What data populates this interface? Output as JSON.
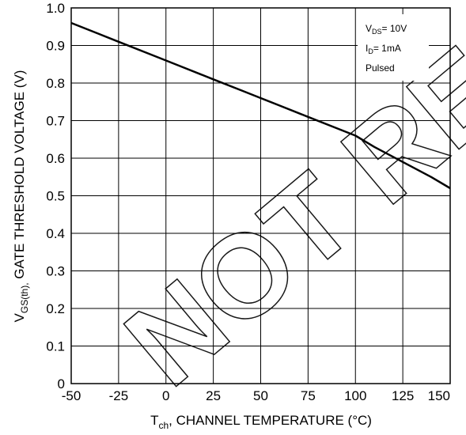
{
  "chart_data": {
    "type": "line",
    "title": "",
    "xlabel": {
      "main": "T",
      "sub": "ch",
      "rest": ", CHANNEL TEMPERATURE  (°C)"
    },
    "ylabel": {
      "main": "V",
      "sub": "GS(th),",
      "rest": " GATE THRESHOLD VOLTAGE (V)"
    },
    "xlim": [
      -50,
      150
    ],
    "ylim": [
      0,
      1.0
    ],
    "x_ticks": [
      -50,
      -25,
      0,
      25,
      50,
      75,
      100,
      125,
      150
    ],
    "x_tick_labels": [
      "-50",
      "-25",
      "0",
      "25",
      "50",
      "75",
      "100",
      "125",
      "150"
    ],
    "y_ticks": [
      0,
      0.1,
      0.2,
      0.3,
      0.4,
      0.5,
      0.6,
      0.7,
      0.8,
      0.9,
      1.0
    ],
    "y_tick_labels": [
      "0",
      "0.1",
      "0.2",
      "0.3",
      "0.4",
      "0.5",
      "0.6",
      "0.7",
      "0.8",
      "0.9",
      "1.0"
    ],
    "grid": true,
    "legend_position": "top-right",
    "conditions": [
      {
        "main": "V",
        "sub": "DS",
        "rest": "= 10V"
      },
      {
        "main": "I",
        "sub": "D",
        "rest": "= 1mA"
      },
      {
        "main": "Pulsed",
        "sub": "",
        "rest": ""
      }
    ],
    "series": [
      {
        "x": [
          -50,
          -40,
          -25,
          -10,
          0,
          10,
          25,
          40,
          50,
          60,
          75,
          90,
          100,
          110,
          125,
          140,
          150
        ],
        "y": [
          0.96,
          0.94,
          0.91,
          0.88,
          0.86,
          0.84,
          0.81,
          0.78,
          0.76,
          0.74,
          0.71,
          0.68,
          0.66,
          0.63,
          0.59,
          0.55,
          0.52
        ]
      }
    ],
    "line_color": "#000000",
    "grid_color": "#000000"
  },
  "watermark": {
    "text": "NOT RECOMMENDED",
    "color": "#000000"
  }
}
